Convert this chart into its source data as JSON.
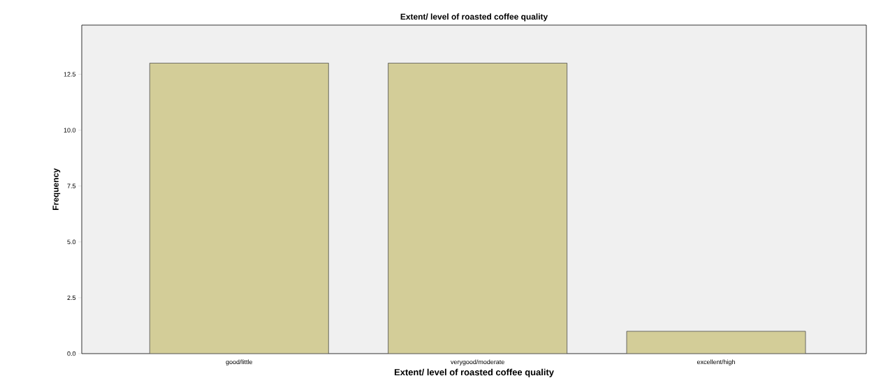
{
  "chart_data": {
    "type": "bar",
    "title": "Extent/ level of roasted coffee quality",
    "xlabel": "Extent/ level of roasted coffee quality",
    "ylabel": "Frequency",
    "categories": [
      "good/little",
      "verygood/moderate",
      "excellent/high"
    ],
    "values": [
      13,
      13,
      1
    ],
    "color": "#d3cd98",
    "ylim": [
      0,
      14.7
    ],
    "yticks": [
      {
        "value": 0,
        "label": "0.0"
      },
      {
        "value": 2.5,
        "label": "2.5"
      },
      {
        "value": 5,
        "label": "5.0"
      },
      {
        "value": 7.5,
        "label": "7.5"
      },
      {
        "value": 10,
        "label": "10.0"
      },
      {
        "value": 12.5,
        "label": "12.5"
      }
    ]
  }
}
